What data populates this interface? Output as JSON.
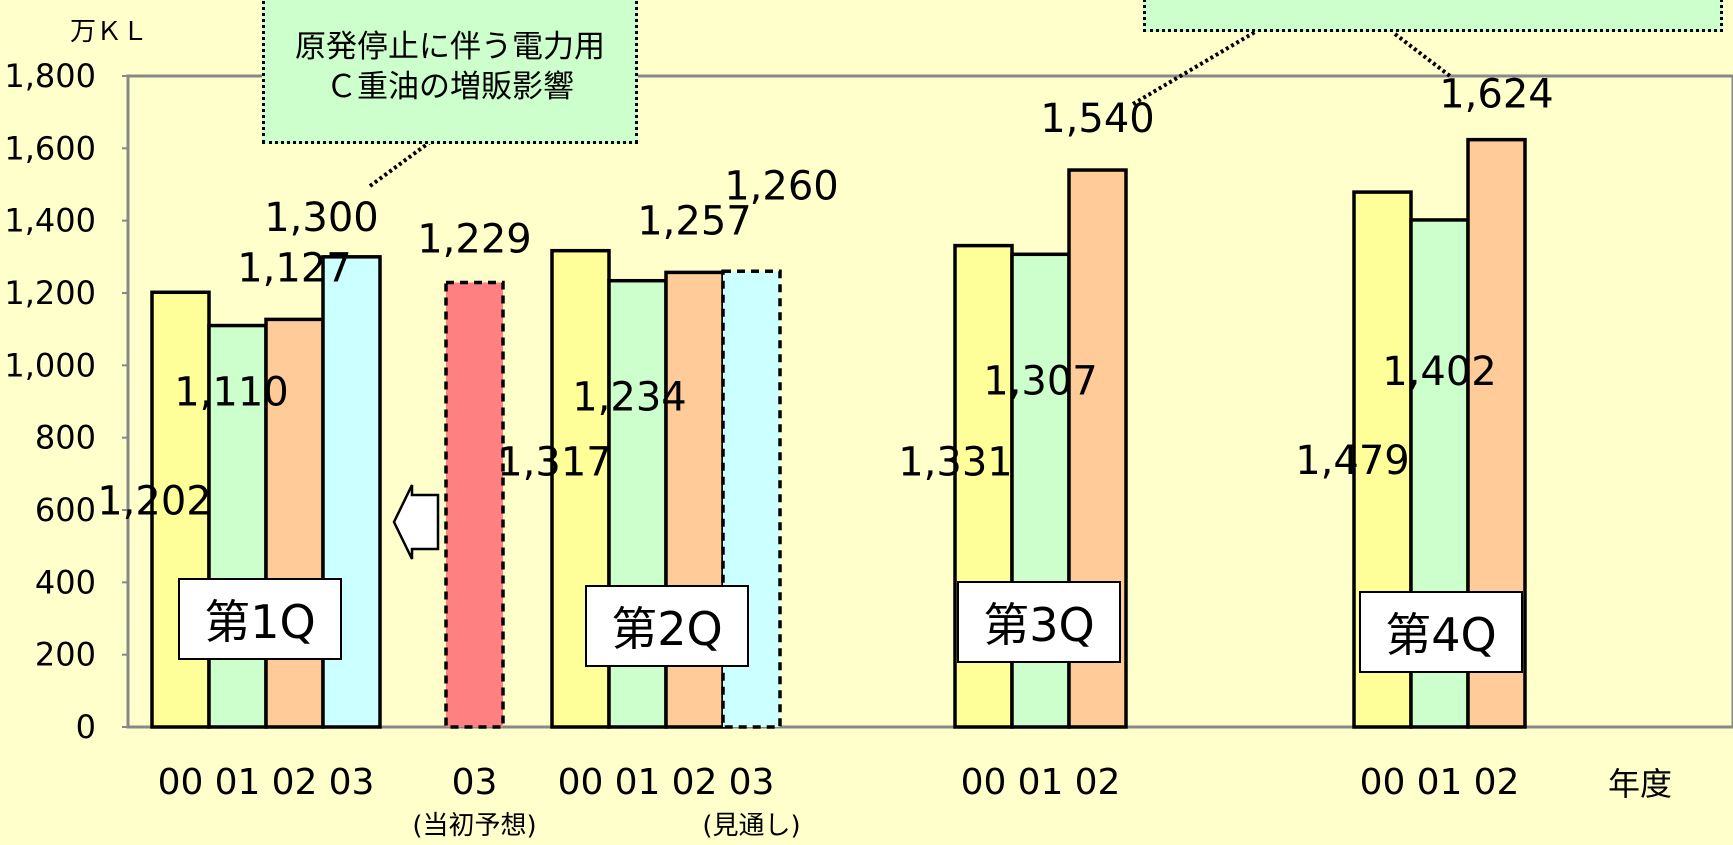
{
  "unit_label": "万ＫＬ",
  "fiscal_year_label": "年度",
  "callouts": {
    "q1_line1": "原発停止に伴う電力用",
    "q1_line2": "Ｃ重油の増販影響",
    "top_right": ""
  },
  "sublabels": {
    "initial_forecast": "(当初予想)",
    "outlook": "(見通し)"
  },
  "colors": {
    "fy00": "#ffff99",
    "fy01": "#ccffcc",
    "fy02": "#ffcc99",
    "fy03": "#ccffff",
    "forecast": "#ff8080",
    "background": "#ffffcc",
    "callout": "#ccffcc"
  },
  "chart_data": {
    "type": "bar",
    "ylim": [
      0,
      1800
    ],
    "yticks": [
      0,
      200,
      400,
      600,
      800,
      1000,
      1200,
      1400,
      1600,
      1800
    ],
    "ytick_labels": [
      "0",
      "200",
      "400",
      "600",
      "800",
      "1,000",
      "1,200",
      "1,400",
      "1,600",
      "1,800"
    ],
    "groups": [
      {
        "name": "第1Q",
        "bars": [
          {
            "year": "00",
            "value": 1202,
            "label": "1,202",
            "color": "fy00"
          },
          {
            "year": "01",
            "value": 1110,
            "label": "1,110",
            "color": "fy01"
          },
          {
            "year": "02",
            "value": 1127,
            "label": "1,127",
            "color": "fy02"
          },
          {
            "year": "03",
            "value": 1300,
            "label": "1,300",
            "color": "fy03"
          }
        ]
      },
      {
        "name": "",
        "bars": [
          {
            "year": "03",
            "value": 1229,
            "label": "1,229",
            "color": "forecast",
            "dashed": true,
            "sublabel": "initial_forecast"
          }
        ]
      },
      {
        "name": "第2Q",
        "bars": [
          {
            "year": "00",
            "value": 1317,
            "label": "1,317",
            "color": "fy00"
          },
          {
            "year": "01",
            "value": 1234,
            "label": "1,234",
            "color": "fy01"
          },
          {
            "year": "02",
            "value": 1257,
            "label": "1,257",
            "color": "fy02"
          },
          {
            "year": "03",
            "value": 1260,
            "label": "1,260",
            "color": "fy03",
            "dashed": true,
            "sublabel": "outlook"
          }
        ]
      },
      {
        "name": "第3Q",
        "bars": [
          {
            "year": "00",
            "value": 1331,
            "label": "1,331",
            "color": "fy00"
          },
          {
            "year": "01",
            "value": 1307,
            "label": "1,307",
            "color": "fy01"
          },
          {
            "year": "02",
            "value": 1540,
            "label": "1,540",
            "color": "fy02"
          }
        ]
      },
      {
        "name": "第4Q",
        "bars": [
          {
            "year": "00",
            "value": 1479,
            "label": "1,479",
            "color": "fy00"
          },
          {
            "year": "01",
            "value": 1402,
            "label": "1,402",
            "color": "fy01"
          },
          {
            "year": "02",
            "value": 1624,
            "label": "1,624",
            "color": "fy02"
          }
        ]
      }
    ]
  }
}
